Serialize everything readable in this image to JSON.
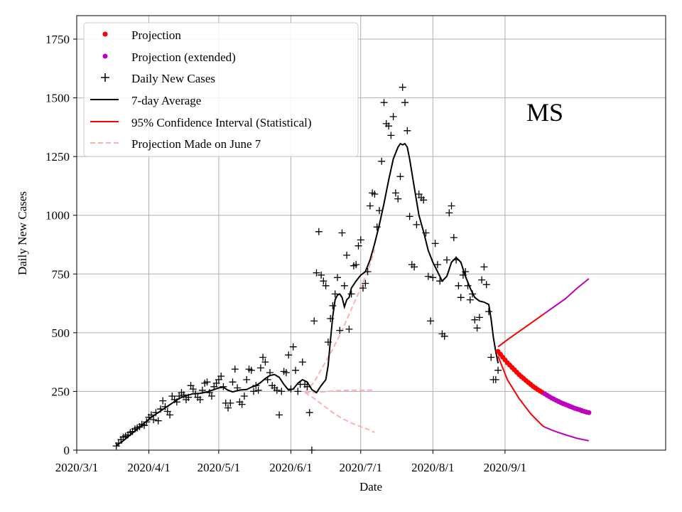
{
  "chart_data": {
    "type": "line",
    "state_label": "MS",
    "xlabel": "Date",
    "ylabel": "Daily New Cases",
    "xlim": [
      0,
      253
    ],
    "ylim": [
      0,
      1850
    ],
    "grid": true,
    "legend_position": "top-left",
    "colors": {
      "projection": "#ff0000",
      "projection_extended": "#bf00bf",
      "daily": "#000000",
      "avg": "#000000",
      "ci": "#ff0000",
      "june7": "#ffb0b0",
      "grid": "#b0b0b0"
    },
    "x_ticks": [
      {
        "day": 0,
        "label": "2020/3/1"
      },
      {
        "day": 31,
        "label": "2020/4/1"
      },
      {
        "day": 61,
        "label": "2020/5/1"
      },
      {
        "day": 92,
        "label": "2020/6/1"
      },
      {
        "day": 122,
        "label": "2020/7/1"
      },
      {
        "day": 153,
        "label": "2020/8/1"
      },
      {
        "day": 184,
        "label": "2020/9/1"
      }
    ],
    "y_ticks": [
      {
        "value": 0,
        "label": "0"
      },
      {
        "value": 250,
        "label": "250"
      },
      {
        "value": 500,
        "label": "500"
      },
      {
        "value": 750,
        "label": "750"
      },
      {
        "value": 1000,
        "label": "1000"
      },
      {
        "value": 1250,
        "label": "1250"
      },
      {
        "value": 1500,
        "label": "1500"
      },
      {
        "value": 1750,
        "label": "1750"
      }
    ],
    "legend": [
      {
        "key": "projection",
        "label": "Projection"
      },
      {
        "key": "projection_extended",
        "label": "Projection (extended)"
      },
      {
        "key": "daily",
        "label": "Daily New Cases"
      },
      {
        "key": "avg",
        "label": "7-day Average"
      },
      {
        "key": "ci",
        "label": "95% Confidence Interval (Statistical)"
      },
      {
        "key": "june7",
        "label": "Projection Made on June 7"
      }
    ],
    "daily_new_cases": [
      [
        17,
        18
      ],
      [
        18,
        30
      ],
      [
        19,
        45
      ],
      [
        20,
        55
      ],
      [
        21,
        60
      ],
      [
        22,
        65
      ],
      [
        23,
        75
      ],
      [
        24,
        80
      ],
      [
        25,
        90
      ],
      [
        26,
        95
      ],
      [
        27,
        100
      ],
      [
        28,
        110
      ],
      [
        29,
        105
      ],
      [
        30,
        120
      ],
      [
        31,
        140
      ],
      [
        32,
        150
      ],
      [
        33,
        130
      ],
      [
        34,
        160
      ],
      [
        35,
        125
      ],
      [
        36,
        175
      ],
      [
        37,
        210
      ],
      [
        38,
        185
      ],
      [
        39,
        165
      ],
      [
        40,
        150
      ],
      [
        41,
        230
      ],
      [
        42,
        215
      ],
      [
        43,
        205
      ],
      [
        44,
        230
      ],
      [
        45,
        245
      ],
      [
        46,
        235
      ],
      [
        47,
        215
      ],
      [
        48,
        225
      ],
      [
        49,
        275
      ],
      [
        50,
        260
      ],
      [
        51,
        240
      ],
      [
        52,
        225
      ],
      [
        53,
        215
      ],
      [
        54,
        255
      ],
      [
        55,
        285
      ],
      [
        56,
        290
      ],
      [
        57,
        245
      ],
      [
        58,
        230
      ],
      [
        59,
        270
      ],
      [
        60,
        285
      ],
      [
        61,
        300
      ],
      [
        62,
        315
      ],
      [
        63,
        270
      ],
      [
        64,
        200
      ],
      [
        65,
        180
      ],
      [
        66,
        200
      ],
      [
        67,
        290
      ],
      [
        68,
        345
      ],
      [
        69,
        265
      ],
      [
        70,
        205
      ],
      [
        71,
        195
      ],
      [
        72,
        230
      ],
      [
        73,
        300
      ],
      [
        74,
        345
      ],
      [
        75,
        340
      ],
      [
        76,
        250
      ],
      [
        77,
        275
      ],
      [
        78,
        255
      ],
      [
        79,
        350
      ],
      [
        80,
        395
      ],
      [
        81,
        375
      ],
      [
        82,
        300
      ],
      [
        83,
        330
      ],
      [
        84,
        275
      ],
      [
        85,
        265
      ],
      [
        86,
        255
      ],
      [
        87,
        150
      ],
      [
        88,
        250
      ],
      [
        89,
        335
      ],
      [
        90,
        330
      ],
      [
        91,
        405
      ],
      [
        92,
        260
      ],
      [
        93,
        440
      ],
      [
        94,
        340
      ],
      [
        95,
        250
      ],
      [
        96,
        280
      ],
      [
        97,
        375
      ],
      [
        98,
        280
      ],
      [
        99,
        270
      ],
      [
        100,
        160
      ],
      [
        101,
        0
      ],
      [
        102,
        550
      ],
      [
        103,
        755
      ],
      [
        104,
        930
      ],
      [
        105,
        745
      ],
      [
        106,
        720
      ],
      [
        107,
        700
      ],
      [
        108,
        460
      ],
      [
        109,
        560
      ],
      [
        110,
        615
      ],
      [
        111,
        665
      ],
      [
        112,
        735
      ],
      [
        113,
        510
      ],
      [
        114,
        925
      ],
      [
        115,
        700
      ],
      [
        116,
        830
      ],
      [
        117,
        515
      ],
      [
        118,
        665
      ],
      [
        119,
        785
      ],
      [
        120,
        790
      ],
      [
        121,
        870
      ],
      [
        122,
        895
      ],
      [
        123,
        690
      ],
      [
        124,
        710
      ],
      [
        125,
        760
      ],
      [
        126,
        1040
      ],
      [
        127,
        1095
      ],
      [
        128,
        1090
      ],
      [
        129,
        950
      ],
      [
        130,
        1020
      ],
      [
        131,
        1230
      ],
      [
        132,
        1480
      ],
      [
        133,
        1390
      ],
      [
        134,
        1380
      ],
      [
        135,
        1340
      ],
      [
        136,
        1420
      ],
      [
        137,
        1095
      ],
      [
        138,
        1070
      ],
      [
        139,
        1165
      ],
      [
        140,
        1545
      ],
      [
        141,
        1480
      ],
      [
        142,
        1360
      ],
      [
        143,
        995
      ],
      [
        144,
        790
      ],
      [
        145,
        780
      ],
      [
        146,
        960
      ],
      [
        147,
        1090
      ],
      [
        148,
        1075
      ],
      [
        149,
        1065
      ],
      [
        150,
        925
      ],
      [
        151,
        740
      ],
      [
        152,
        550
      ],
      [
        153,
        735
      ],
      [
        154,
        880
      ],
      [
        155,
        790
      ],
      [
        156,
        720
      ],
      [
        157,
        495
      ],
      [
        158,
        485
      ],
      [
        159,
        810
      ],
      [
        160,
        1010
      ],
      [
        161,
        1040
      ],
      [
        162,
        905
      ],
      [
        163,
        810
      ],
      [
        164,
        700
      ],
      [
        165,
        650
      ],
      [
        166,
        745
      ],
      [
        167,
        760
      ],
      [
        168,
        700
      ],
      [
        169,
        640
      ],
      [
        170,
        665
      ],
      [
        171,
        555
      ],
      [
        172,
        520
      ],
      [
        173,
        565
      ],
      [
        174,
        725
      ],
      [
        175,
        780
      ],
      [
        176,
        705
      ],
      [
        177,
        590
      ],
      [
        178,
        395
      ],
      [
        179,
        300
      ],
      [
        180,
        300
      ],
      [
        181,
        340
      ]
    ],
    "seven_day_average": [
      [
        17,
        20
      ],
      [
        20,
        40
      ],
      [
        23,
        65
      ],
      [
        26,
        90
      ],
      [
        29,
        115
      ],
      [
        32,
        140
      ],
      [
        35,
        160
      ],
      [
        38,
        180
      ],
      [
        41,
        200
      ],
      [
        44,
        220
      ],
      [
        47,
        232
      ],
      [
        50,
        240
      ],
      [
        53,
        242
      ],
      [
        56,
        248
      ],
      [
        59,
        258
      ],
      [
        61,
        265
      ],
      [
        63,
        268
      ],
      [
        65,
        255
      ],
      [
        67,
        248
      ],
      [
        70,
        256
      ],
      [
        73,
        258
      ],
      [
        75,
        268
      ],
      [
        77,
        275
      ],
      [
        79,
        288
      ],
      [
        81,
        305
      ],
      [
        83,
        318
      ],
      [
        85,
        322
      ],
      [
        87,
        310
      ],
      [
        89,
        280
      ],
      [
        91,
        255
      ],
      [
        93,
        260
      ],
      [
        95,
        285
      ],
      [
        97,
        300
      ],
      [
        99,
        290
      ],
      [
        101,
        258
      ],
      [
        103,
        245
      ],
      [
        105,
        275
      ],
      [
        107,
        300
      ],
      [
        108,
        360
      ],
      [
        109,
        470
      ],
      [
        110,
        570
      ],
      [
        111,
        640
      ],
      [
        112,
        660
      ],
      [
        113,
        665
      ],
      [
        114,
        650
      ],
      [
        115,
        610
      ],
      [
        116,
        640
      ],
      [
        117,
        650
      ],
      [
        118,
        690
      ],
      [
        120,
        720
      ],
      [
        122,
        745
      ],
      [
        124,
        760
      ],
      [
        126,
        810
      ],
      [
        128,
        880
      ],
      [
        130,
        960
      ],
      [
        132,
        1050
      ],
      [
        134,
        1150
      ],
      [
        136,
        1240
      ],
      [
        138,
        1290
      ],
      [
        139,
        1305
      ],
      [
        140,
        1300
      ],
      [
        141,
        1305
      ],
      [
        142,
        1290
      ],
      [
        143,
        1240
      ],
      [
        145,
        1120
      ],
      [
        147,
        1000
      ],
      [
        149,
        930
      ],
      [
        151,
        850
      ],
      [
        153,
        800
      ],
      [
        155,
        760
      ],
      [
        157,
        720
      ],
      [
        159,
        740
      ],
      [
        161,
        800
      ],
      [
        163,
        820
      ],
      [
        165,
        800
      ],
      [
        167,
        740
      ],
      [
        169,
        690
      ],
      [
        171,
        650
      ],
      [
        173,
        635
      ],
      [
        175,
        630
      ],
      [
        177,
        620
      ],
      [
        178,
        560
      ],
      [
        179,
        480
      ],
      [
        180,
        420
      ],
      [
        181,
        370
      ]
    ],
    "june7_projection": {
      "start_day": 98,
      "central": [
        [
          98,
          245
        ],
        [
          102,
          245
        ],
        [
          106,
          248
        ],
        [
          110,
          252
        ],
        [
          114,
          254
        ],
        [
          118,
          255
        ],
        [
          122,
          255
        ],
        [
          126,
          256
        ],
        [
          128,
          257
        ]
      ],
      "upper": [
        [
          98,
          245
        ],
        [
          102,
          290
        ],
        [
          106,
          360
        ],
        [
          110,
          430
        ],
        [
          114,
          510
        ],
        [
          118,
          600
        ],
        [
          122,
          690
        ],
        [
          126,
          790
        ],
        [
          128,
          855
        ]
      ],
      "lower": [
        [
          98,
          245
        ],
        [
          102,
          220
        ],
        [
          106,
          190
        ],
        [
          110,
          160
        ],
        [
          114,
          135
        ],
        [
          118,
          115
        ],
        [
          122,
          100
        ],
        [
          126,
          85
        ],
        [
          128,
          75
        ]
      ]
    },
    "projection": [
      [
        181,
        420
      ],
      [
        182,
        408
      ],
      [
        183,
        396
      ],
      [
        184,
        384
      ],
      [
        185,
        372
      ],
      [
        186,
        362
      ],
      [
        187,
        352
      ],
      [
        188,
        342
      ],
      [
        189,
        332
      ],
      [
        190,
        322
      ],
      [
        191,
        313
      ],
      [
        192,
        305
      ],
      [
        193,
        296
      ],
      [
        194,
        288
      ],
      [
        195,
        280
      ],
      [
        196,
        272
      ],
      [
        197,
        265
      ],
      [
        198,
        258
      ],
      [
        199,
        252
      ],
      [
        200,
        246
      ]
    ],
    "projection_extended": [
      [
        201,
        240
      ],
      [
        202,
        234
      ],
      [
        203,
        228
      ],
      [
        204,
        222
      ],
      [
        205,
        217
      ],
      [
        206,
        212
      ],
      [
        207,
        207
      ],
      [
        208,
        202
      ],
      [
        209,
        198
      ],
      [
        210,
        194
      ],
      [
        211,
        190
      ],
      [
        212,
        186
      ],
      [
        213,
        182
      ],
      [
        214,
        178
      ],
      [
        215,
        175
      ],
      [
        216,
        172
      ],
      [
        217,
        168
      ],
      [
        218,
        165
      ],
      [
        219,
        162
      ],
      [
        220,
        160
      ]
    ],
    "confidence_interval": {
      "upper": [
        [
          181,
          440
        ],
        [
          185,
          470
        ],
        [
          190,
          505
        ],
        [
          195,
          540
        ],
        [
          200,
          575
        ],
        [
          201,
          582
        ]
      ],
      "lower": [
        [
          181,
          400
        ],
        [
          185,
          300
        ],
        [
          190,
          220
        ],
        [
          195,
          155
        ],
        [
          200,
          105
        ],
        [
          201,
          98
        ]
      ],
      "upper_extended": [
        [
          201,
          582
        ],
        [
          205,
          610
        ],
        [
          210,
          645
        ],
        [
          215,
          690
        ],
        [
          220,
          730
        ]
      ],
      "lower_extended": [
        [
          201,
          98
        ],
        [
          205,
          82
        ],
        [
          210,
          65
        ],
        [
          215,
          50
        ],
        [
          220,
          40
        ]
      ]
    }
  }
}
